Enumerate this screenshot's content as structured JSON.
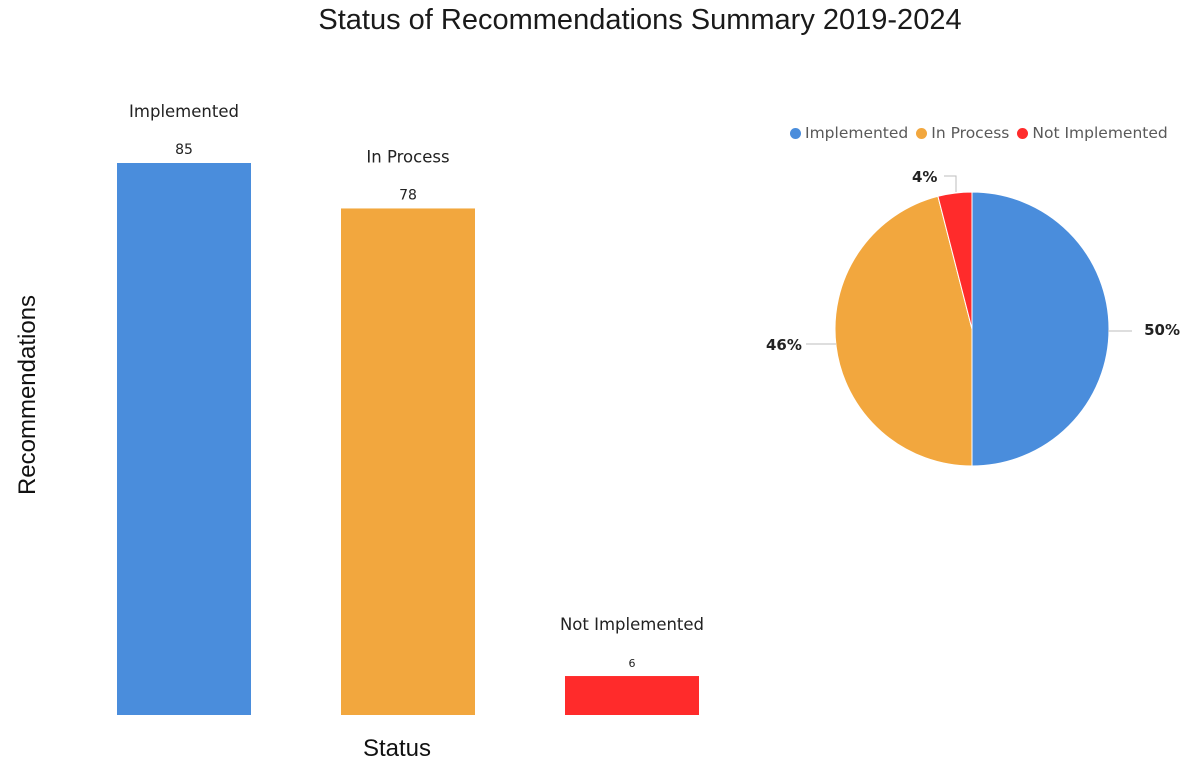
{
  "chart_data": [
    {
      "type": "bar",
      "title": "Status of Recommendations Summary 2019-2024",
      "xlabel": "Status",
      "ylabel": "Recommendations",
      "categories": [
        "Implemented",
        "In Process",
        "Not Implemented"
      ],
      "values": [
        85,
        78,
        6
      ],
      "colors": [
        "#4a8ddc",
        "#f2a73e",
        "#ff2b2b"
      ],
      "grid": false
    },
    {
      "type": "pie",
      "labels": [
        "Implemented",
        "In Process",
        "Not Implemented"
      ],
      "values": [
        50,
        46,
        4
      ],
      "value_labels": [
        "50%",
        "46%",
        "4%"
      ],
      "colors": [
        "#4a8ddc",
        "#f2a73e",
        "#ff2b2b"
      ],
      "legend": "top"
    }
  ]
}
